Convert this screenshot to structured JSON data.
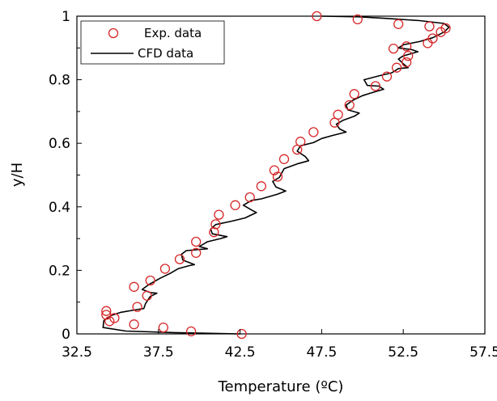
{
  "chart_data": {
    "type": "scatter",
    "xlabel": "Temperature (ºC)",
    "ylabel": "y/H",
    "xlim": [
      32.5,
      57.5
    ],
    "ylim": [
      0,
      1
    ],
    "xticks": [
      "32.5",
      "37.5",
      "42.5",
      "47.5",
      "52.5",
      "57.5"
    ],
    "yticks": [
      "0",
      "0.2",
      "0.4",
      "0.6",
      "0.8",
      "1"
    ],
    "grid": false,
    "legend_position": "top-left",
    "series": [
      {
        "name": "Exp. data",
        "kind": "scatter",
        "color": "#d62728",
        "points": [
          [
            42.6,
            0.0
          ],
          [
            39.5,
            0.008
          ],
          [
            37.8,
            0.02
          ],
          [
            34.8,
            0.05
          ],
          [
            34.5,
            0.04
          ],
          [
            34.3,
            0.06
          ],
          [
            34.3,
            0.072
          ],
          [
            36.0,
            0.03
          ],
          [
            36.2,
            0.085
          ],
          [
            36.8,
            0.12
          ],
          [
            36.0,
            0.148
          ],
          [
            37.0,
            0.168
          ],
          [
            37.9,
            0.205
          ],
          [
            38.8,
            0.235
          ],
          [
            39.8,
            0.255
          ],
          [
            39.8,
            0.29
          ],
          [
            40.9,
            0.32
          ],
          [
            41.0,
            0.345
          ],
          [
            41.2,
            0.375
          ],
          [
            42.2,
            0.405
          ],
          [
            43.1,
            0.43
          ],
          [
            43.8,
            0.465
          ],
          [
            44.8,
            0.495
          ],
          [
            44.6,
            0.515
          ],
          [
            45.2,
            0.55
          ],
          [
            46.0,
            0.58
          ],
          [
            46.2,
            0.605
          ],
          [
            47.0,
            0.635
          ],
          [
            48.3,
            0.665
          ],
          [
            48.5,
            0.69
          ],
          [
            49.2,
            0.72
          ],
          [
            49.5,
            0.755
          ],
          [
            50.8,
            0.78
          ],
          [
            51.5,
            0.81
          ],
          [
            52.1,
            0.838
          ],
          [
            52.7,
            0.855
          ],
          [
            52.8,
            0.875
          ],
          [
            51.9,
            0.898
          ],
          [
            52.7,
            0.905
          ],
          [
            54.0,
            0.915
          ],
          [
            54.3,
            0.93
          ],
          [
            54.8,
            0.95
          ],
          [
            55.1,
            0.962
          ],
          [
            54.1,
            0.968
          ],
          [
            52.2,
            0.975
          ],
          [
            49.7,
            0.99
          ],
          [
            47.2,
            1.0
          ]
        ]
      },
      {
        "name": "CFD data",
        "kind": "line",
        "color": "#000000",
        "points": [
          [
            42.5,
            0.0
          ],
          [
            38.5,
            0.004
          ],
          [
            35.5,
            0.009
          ],
          [
            34.1,
            0.02
          ],
          [
            34.15,
            0.042
          ],
          [
            34.6,
            0.058
          ],
          [
            35.2,
            0.068
          ],
          [
            36.0,
            0.075
          ],
          [
            36.6,
            0.08
          ],
          [
            36.7,
            0.095
          ],
          [
            37.0,
            0.118
          ],
          [
            37.4,
            0.128
          ],
          [
            37.0,
            0.13
          ],
          [
            36.5,
            0.14
          ],
          [
            36.9,
            0.155
          ],
          [
            37.6,
            0.175
          ],
          [
            38.2,
            0.19
          ],
          [
            38.7,
            0.205
          ],
          [
            39.4,
            0.215
          ],
          [
            39.7,
            0.218
          ],
          [
            39.0,
            0.232
          ],
          [
            38.9,
            0.25
          ],
          [
            39.2,
            0.262
          ],
          [
            40.5,
            0.268
          ],
          [
            40.0,
            0.275
          ],
          [
            40.5,
            0.29
          ],
          [
            41.3,
            0.3
          ],
          [
            41.7,
            0.306
          ],
          [
            40.8,
            0.315
          ],
          [
            40.7,
            0.33
          ],
          [
            41.0,
            0.344
          ],
          [
            42.0,
            0.355
          ],
          [
            42.8,
            0.365
          ],
          [
            43.5,
            0.382
          ],
          [
            43.2,
            0.39
          ],
          [
            42.7,
            0.405
          ],
          [
            43.2,
            0.42
          ],
          [
            43.8,
            0.425
          ],
          [
            44.8,
            0.44
          ],
          [
            45.3,
            0.45
          ],
          [
            44.7,
            0.462
          ],
          [
            44.5,
            0.48
          ],
          [
            44.9,
            0.492
          ],
          [
            45.2,
            0.52
          ],
          [
            46.0,
            0.535
          ],
          [
            46.7,
            0.545
          ],
          [
            46.5,
            0.558
          ],
          [
            46.0,
            0.575
          ],
          [
            46.2,
            0.592
          ],
          [
            47.0,
            0.602
          ],
          [
            47.5,
            0.615
          ],
          [
            48.2,
            0.625
          ],
          [
            49.0,
            0.635
          ],
          [
            48.6,
            0.645
          ],
          [
            48.4,
            0.66
          ],
          [
            48.8,
            0.672
          ],
          [
            49.5,
            0.685
          ],
          [
            49.8,
            0.695
          ],
          [
            49.1,
            0.705
          ],
          [
            49.0,
            0.72
          ],
          [
            49.4,
            0.735
          ],
          [
            50.0,
            0.75
          ],
          [
            50.5,
            0.758
          ],
          [
            51.3,
            0.77
          ],
          [
            51.0,
            0.78
          ],
          [
            50.3,
            0.782
          ],
          [
            50.1,
            0.8
          ],
          [
            51.0,
            0.812
          ],
          [
            51.8,
            0.822
          ],
          [
            52.2,
            0.835
          ],
          [
            52.8,
            0.838
          ],
          [
            52.5,
            0.85
          ],
          [
            52.2,
            0.865
          ],
          [
            52.5,
            0.875
          ],
          [
            53.4,
            0.888
          ],
          [
            53.0,
            0.895
          ],
          [
            52.2,
            0.9
          ],
          [
            52.5,
            0.91
          ],
          [
            53.5,
            0.92
          ],
          [
            54.3,
            0.932
          ],
          [
            55.0,
            0.95
          ],
          [
            55.3,
            0.965
          ],
          [
            55.0,
            0.977
          ],
          [
            53.5,
            0.986
          ],
          [
            51.5,
            0.993
          ],
          [
            49.8,
            0.998
          ],
          [
            47.5,
            1.0
          ]
        ]
      }
    ]
  }
}
